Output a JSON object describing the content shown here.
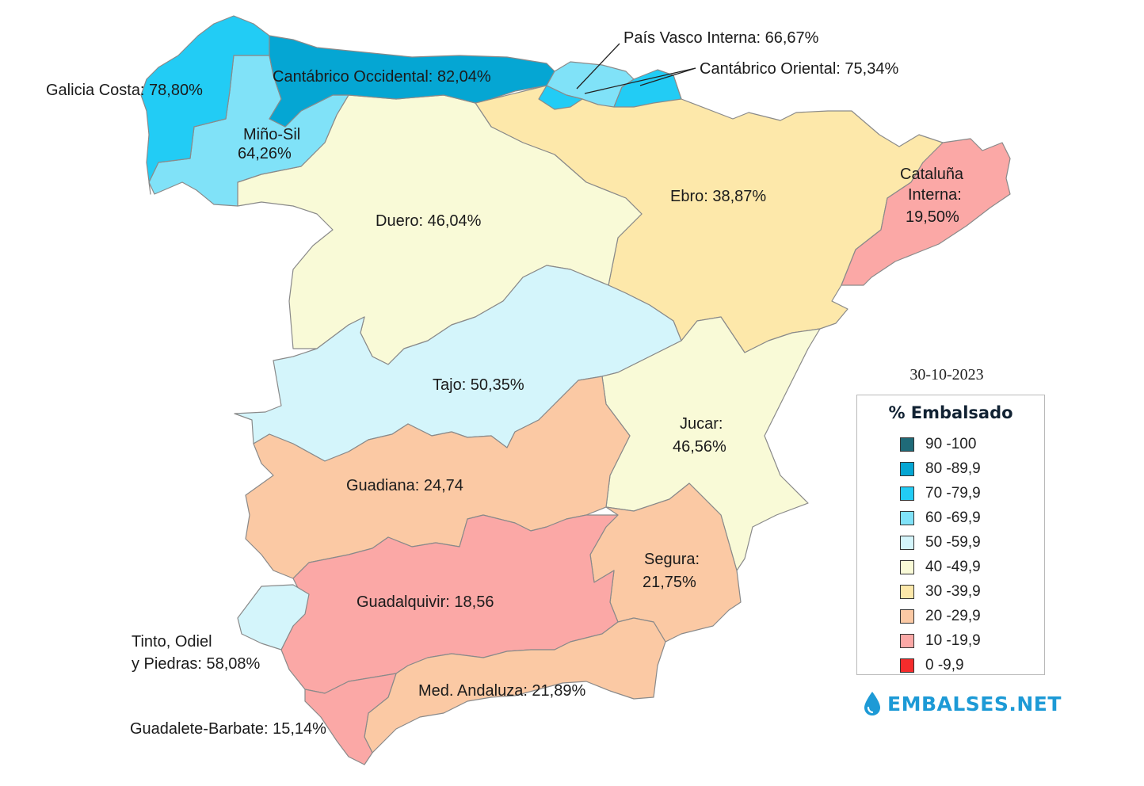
{
  "date": "30-10-2023",
  "legend": {
    "title": "% Embalsado",
    "items": [
      {
        "label": "90 -100",
        "color": "#1f6a78"
      },
      {
        "label": "80 -89,9",
        "color": "#05a6d3"
      },
      {
        "label": "70 -79,9",
        "color": "#22ccf5"
      },
      {
        "label": "60 -69,9",
        "color": "#80e2f8"
      },
      {
        "label": "50 -59,9",
        "color": "#d4f5fb"
      },
      {
        "label": "40 -49,9",
        "color": "#f9fad7"
      },
      {
        "label": "30 -39,9",
        "color": "#fde8aa"
      },
      {
        "label": "20 -29,9",
        "color": "#fbc9a4"
      },
      {
        "label": "10 -19,9",
        "color": "#fba8a6"
      },
      {
        "label": "0 -9,9",
        "color": "#f52c2c"
      }
    ]
  },
  "brand": "EMBALSES.NET",
  "regions": {
    "galicia_costa": {
      "label": "Galicia Costa: 78,80%",
      "color": "#22ccf5"
    },
    "mino_sil": {
      "label1": "Miño-Sil",
      "label2": "64,26%",
      "color": "#80e2f8"
    },
    "cantabrico_occidental": {
      "label": "Cantábrico Occidental: 82,04%",
      "color": "#05a6d3"
    },
    "pais_vasco_interna": {
      "label": "País Vasco Interna: 66,67%",
      "color": "#80e2f8"
    },
    "cantabrico_oriental": {
      "label": "Cantábrico Oriental: 75,34%",
      "color": "#22ccf5"
    },
    "duero": {
      "label": "Duero: 46,04%",
      "color": "#f9fad7"
    },
    "ebro": {
      "label": "Ebro: 38,87%",
      "color": "#fde8aa"
    },
    "cataluna_interna": {
      "label1": "Cataluña",
      "label2": "Interna:",
      "label3": "19,50%",
      "color": "#fba8a6"
    },
    "tajo": {
      "label": "Tajo: 50,35%",
      "color": "#d4f5fb"
    },
    "jucar": {
      "label1": "Jucar:",
      "label2": "46,56%",
      "color": "#f9fad7"
    },
    "guadiana": {
      "label": "Guadiana: 24,74",
      "color": "#fbc9a4"
    },
    "segura": {
      "label1": "Segura:",
      "label2": "21,75%",
      "color": "#fbc9a4"
    },
    "guadalquivir": {
      "label": "Guadalquivir: 18,56",
      "color": "#fba8a6"
    },
    "tinto_odiel_piedras": {
      "label1": "Tinto, Odiel",
      "label2": "y Piedras: 58,08%",
      "color": "#d4f5fb"
    },
    "med_andaluza": {
      "label": "Med. Andaluza: 21,89%",
      "color": "#fbc9a4"
    },
    "guadalete_barbate": {
      "label": "Guadalete-Barbate: 15,14%",
      "color": "#fba8a6"
    }
  }
}
